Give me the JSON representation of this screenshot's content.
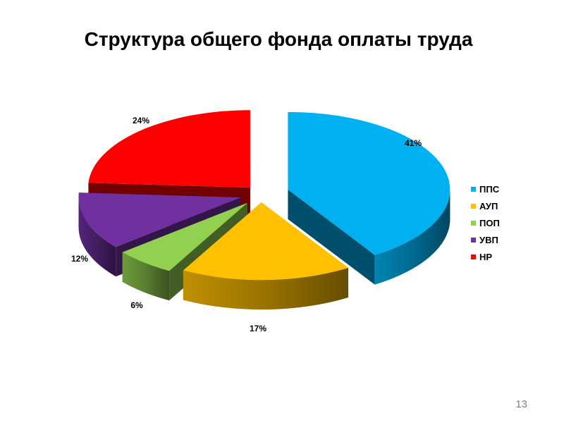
{
  "slide": {
    "title": "Структура общего фонда оплаты труда",
    "page_number": "13"
  },
  "chart_data": {
    "type": "pie",
    "title": "",
    "categories": [
      "ППС",
      "АУП",
      "ПОП",
      "УВП",
      "НР"
    ],
    "values": [
      41,
      17,
      6,
      12,
      24
    ],
    "labels": [
      "41%",
      "17%",
      "6%",
      "12%",
      "24%"
    ],
    "colors": [
      "#00B0F0",
      "#FFC000",
      "#92D050",
      "#7030A0",
      "#FF0000"
    ],
    "style": "3d-exploded",
    "legend_position": "right"
  }
}
